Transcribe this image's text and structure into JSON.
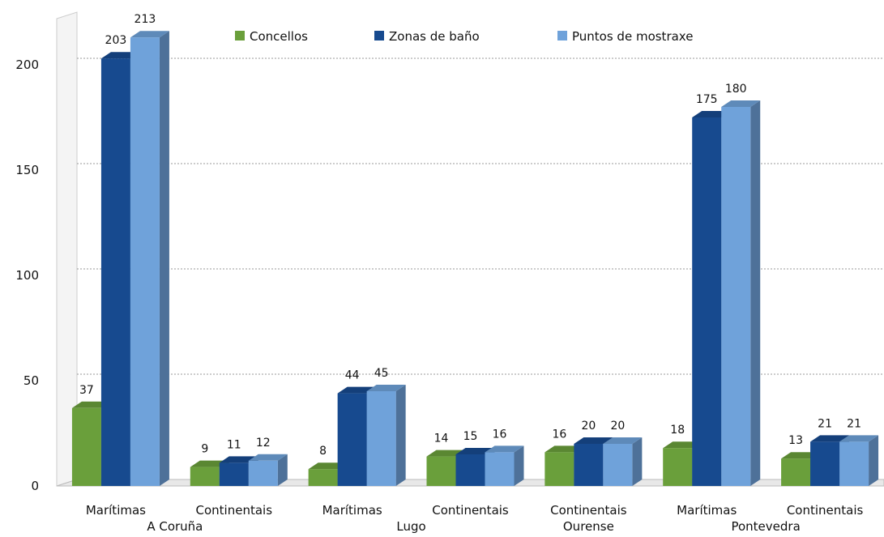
{
  "chart_data": {
    "type": "bar",
    "groups": [
      {
        "name": "A Coruña",
        "categories": [
          "Marítimas",
          "Continentais"
        ]
      },
      {
        "name": "Lugo",
        "categories": [
          "Marítimas",
          "Continentais"
        ]
      },
      {
        "name": "Ourense",
        "categories": [
          "Continentais"
        ]
      },
      {
        "name": "Pontevedra",
        "categories": [
          "Marítimas",
          "Continentais"
        ]
      }
    ],
    "series": [
      {
        "name": "Concellos",
        "color": "#6a9f3b",
        "values": [
          37,
          9,
          8,
          14,
          16,
          18,
          13
        ]
      },
      {
        "name": "Zonas de baño",
        "color": "#174a8f",
        "values": [
          203,
          11,
          44,
          15,
          20,
          175,
          21
        ]
      },
      {
        "name": "Puntos de mostraxe",
        "color": "#6fa2da",
        "values": [
          213,
          12,
          45,
          16,
          20,
          180,
          21
        ]
      }
    ],
    "ylim": [
      0,
      225
    ],
    "yticks": [
      0,
      50,
      100,
      150,
      200
    ],
    "grid": true,
    "legend": "top"
  }
}
